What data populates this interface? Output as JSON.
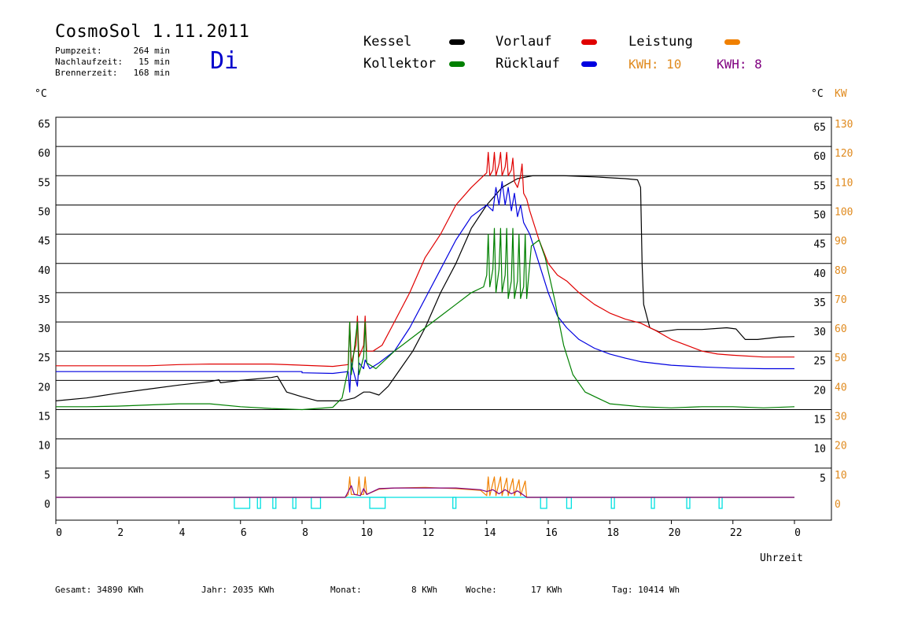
{
  "header": {
    "title": "CosmoSol 1.11.2011",
    "day": "Di",
    "info": [
      {
        "label": "Pumpzeit:",
        "value": "264 min"
      },
      {
        "label": "Nachlaufzeit:",
        "value": "15 min"
      },
      {
        "label": "Brennerzeit:",
        "value": "168 min"
      }
    ]
  },
  "legend": {
    "kessel": {
      "label": "Kessel",
      "color": "#000000"
    },
    "vorlauf": {
      "label": "Vorlauf",
      "color": "#e00000"
    },
    "leistung": {
      "label": "Leistung",
      "color": "#f08000"
    },
    "kollektor": {
      "label": "Kollektor",
      "color": "#008000"
    },
    "ruecklauf": {
      "label": "Rücklauf",
      "color": "#0000e0"
    },
    "kwh1": "KWH: 10",
    "kwh2": "KWH: 8",
    "kwh1_color": "#e08a1e",
    "kwh2_color": "#800080"
  },
  "axes": {
    "left_unit": "°C",
    "right_unit_c": "°C",
    "right_unit_kw": "KW",
    "xlabel": "Uhrzeit"
  },
  "footer": {
    "gesamt_label": "Gesamt:",
    "gesamt_value": "34890 KWh",
    "jahr_label": "Jahr:",
    "jahr_value": "2035 KWh",
    "monat_label": "Monat:",
    "monat_value": "8 KWh",
    "woche_label": "Woche:",
    "woche_value": "17 KWh",
    "tag_label": "Tag:",
    "tag_value": "10414 Wh"
  },
  "chart_data": {
    "type": "line",
    "xlabel": "Uhrzeit",
    "ylabel": "°C",
    "xlim": [
      0,
      24
    ],
    "ylim": [
      0,
      65
    ],
    "ylim_right_kw": [
      0,
      130
    ],
    "x_ticks": [
      "0",
      "2",
      "4",
      "6",
      "8",
      "10",
      "12",
      "14",
      "16",
      "18",
      "20",
      "22",
      "0"
    ],
    "y_ticks_left": [
      "0",
      "5",
      "10",
      "15",
      "20",
      "25",
      "30",
      "35",
      "40",
      "45",
      "50",
      "55",
      "60",
      "65"
    ],
    "y_ticks_right_c": [
      "5",
      "10",
      "15",
      "20",
      "25",
      "30",
      "35",
      "40",
      "45",
      "50",
      "55",
      "60",
      "65"
    ],
    "y_ticks_right_kw": [
      "0",
      "10",
      "20",
      "30",
      "40",
      "50",
      "60",
      "70",
      "80",
      "90",
      "100",
      "110",
      "120",
      "130"
    ],
    "grid": true,
    "series": [
      {
        "name": "Kessel",
        "color": "#000000",
        "points": [
          [
            0,
            16.5
          ],
          [
            1,
            17
          ],
          [
            2,
            17.8
          ],
          [
            3,
            18.5
          ],
          [
            4,
            19.2
          ],
          [
            5,
            19.8
          ],
          [
            5.3,
            20.1
          ],
          [
            5.35,
            19.6
          ],
          [
            6,
            20
          ],
          [
            7,
            20.5
          ],
          [
            7.2,
            20.7
          ],
          [
            7.5,
            18
          ],
          [
            8,
            17.2
          ],
          [
            8.5,
            16.5
          ],
          [
            9.3,
            16.5
          ],
          [
            9.7,
            17
          ],
          [
            10,
            18
          ],
          [
            10.2,
            18
          ],
          [
            10.5,
            17.5
          ],
          [
            10.8,
            19
          ],
          [
            11.2,
            22
          ],
          [
            11.6,
            25
          ],
          [
            12,
            29
          ],
          [
            12.5,
            35
          ],
          [
            13,
            40
          ],
          [
            13.5,
            46
          ],
          [
            14,
            50
          ],
          [
            14.5,
            53
          ],
          [
            15,
            54.5
          ],
          [
            15.5,
            55
          ],
          [
            16.5,
            55
          ],
          [
            17.5,
            54.8
          ],
          [
            18.5,
            54.5
          ],
          [
            18.9,
            54.3
          ],
          [
            19,
            53
          ],
          [
            19.05,
            40
          ],
          [
            19.1,
            33
          ],
          [
            19.3,
            29
          ],
          [
            19.6,
            28.3
          ],
          [
            20.2,
            28.7
          ],
          [
            21,
            28.7
          ],
          [
            21.8,
            29
          ],
          [
            22.1,
            28.8
          ],
          [
            22.4,
            27
          ],
          [
            22.8,
            27
          ],
          [
            23.5,
            27.4
          ],
          [
            24,
            27.5
          ]
        ]
      },
      {
        "name": "Vorlauf",
        "color": "#e00000",
        "points": [
          [
            0,
            22.5
          ],
          [
            3,
            22.5
          ],
          [
            4,
            22.7
          ],
          [
            5,
            22.8
          ],
          [
            6,
            22.8
          ],
          [
            7,
            22.8
          ],
          [
            8,
            22.6
          ],
          [
            9,
            22.4
          ],
          [
            9.5,
            22.7
          ],
          [
            9.55,
            30
          ],
          [
            9.6,
            23
          ],
          [
            9.75,
            26
          ],
          [
            9.8,
            31
          ],
          [
            9.85,
            24
          ],
          [
            10,
            26
          ],
          [
            10.05,
            31
          ],
          [
            10.1,
            25
          ],
          [
            10.3,
            25
          ],
          [
            10.6,
            26
          ],
          [
            11,
            30
          ],
          [
            11.5,
            35
          ],
          [
            12,
            41
          ],
          [
            12.5,
            45
          ],
          [
            13,
            50
          ],
          [
            13.5,
            53
          ],
          [
            13.9,
            55
          ],
          [
            14,
            55.5
          ],
          [
            14.05,
            59
          ],
          [
            14.1,
            55
          ],
          [
            14.2,
            56
          ],
          [
            14.25,
            59
          ],
          [
            14.3,
            55
          ],
          [
            14.4,
            57
          ],
          [
            14.45,
            59
          ],
          [
            14.5,
            55
          ],
          [
            14.6,
            56.5
          ],
          [
            14.65,
            59
          ],
          [
            14.7,
            55
          ],
          [
            14.8,
            56
          ],
          [
            14.85,
            58
          ],
          [
            14.9,
            54
          ],
          [
            15,
            53
          ],
          [
            15.1,
            55
          ],
          [
            15.15,
            57
          ],
          [
            15.2,
            52
          ],
          [
            15.3,
            51
          ],
          [
            15.4,
            49
          ],
          [
            15.7,
            44
          ],
          [
            16,
            40
          ],
          [
            16.3,
            38
          ],
          [
            16.6,
            37
          ],
          [
            17,
            35
          ],
          [
            17.5,
            33
          ],
          [
            18,
            31.5
          ],
          [
            18.5,
            30.5
          ],
          [
            19,
            29.8
          ],
          [
            19.5,
            28.5
          ],
          [
            20,
            27
          ],
          [
            20.5,
            26
          ],
          [
            21,
            25
          ],
          [
            21.5,
            24.5
          ],
          [
            22,
            24.3
          ],
          [
            23,
            24
          ],
          [
            24,
            24
          ]
        ]
      },
      {
        "name": "Rücklauf",
        "color": "#0000e0",
        "points": [
          [
            0,
            21.5
          ],
          [
            3,
            21.5
          ],
          [
            6,
            21.5
          ],
          [
            7,
            21.5
          ],
          [
            8,
            21.5
          ],
          [
            8,
            21.3
          ],
          [
            9,
            21.2
          ],
          [
            9.5,
            21.5
          ],
          [
            9.55,
            18
          ],
          [
            9.6,
            23
          ],
          [
            9.8,
            19
          ],
          [
            9.85,
            23
          ],
          [
            10,
            22
          ],
          [
            10.05,
            23.5
          ],
          [
            10.2,
            22
          ],
          [
            10.5,
            23
          ],
          [
            11,
            25
          ],
          [
            11.5,
            29
          ],
          [
            12,
            34
          ],
          [
            12.5,
            39
          ],
          [
            13,
            44
          ],
          [
            13.5,
            48
          ],
          [
            14,
            50
          ],
          [
            14.2,
            49
          ],
          [
            14.3,
            53
          ],
          [
            14.4,
            50
          ],
          [
            14.5,
            54
          ],
          [
            14.6,
            50
          ],
          [
            14.7,
            53
          ],
          [
            14.8,
            49
          ],
          [
            14.9,
            52
          ],
          [
            15,
            48
          ],
          [
            15.1,
            50
          ],
          [
            15.2,
            47
          ],
          [
            15.4,
            45
          ],
          [
            15.7,
            40
          ],
          [
            16,
            35
          ],
          [
            16.3,
            31
          ],
          [
            16.6,
            29
          ],
          [
            17,
            27
          ],
          [
            17.5,
            25.5
          ],
          [
            18,
            24.5
          ],
          [
            18.5,
            23.8
          ],
          [
            19,
            23.2
          ],
          [
            20,
            22.6
          ],
          [
            21,
            22.3
          ],
          [
            22,
            22.1
          ],
          [
            23,
            22
          ],
          [
            24,
            22
          ]
        ]
      },
      {
        "name": "Kollektor",
        "color": "#008000",
        "points": [
          [
            0,
            15.5
          ],
          [
            1,
            15.5
          ],
          [
            2,
            15.6
          ],
          [
            3,
            15.8
          ],
          [
            4,
            16
          ],
          [
            5,
            16
          ],
          [
            6,
            15.5
          ],
          [
            7,
            15.2
          ],
          [
            8,
            15
          ],
          [
            9,
            15.4
          ],
          [
            9.3,
            17
          ],
          [
            9.5,
            22
          ],
          [
            9.55,
            30
          ],
          [
            9.6,
            21
          ],
          [
            9.8,
            30
          ],
          [
            9.85,
            21
          ],
          [
            10,
            24
          ],
          [
            10.05,
            30
          ],
          [
            10.1,
            23
          ],
          [
            10.4,
            22
          ],
          [
            10.8,
            24
          ],
          [
            11,
            25
          ],
          [
            11.5,
            27
          ],
          [
            12,
            29
          ],
          [
            12.5,
            31
          ],
          [
            13,
            33
          ],
          [
            13.5,
            35
          ],
          [
            13.9,
            36
          ],
          [
            14,
            38
          ],
          [
            14.05,
            45
          ],
          [
            14.1,
            36
          ],
          [
            14.2,
            39
          ],
          [
            14.25,
            46
          ],
          [
            14.3,
            35
          ],
          [
            14.4,
            39
          ],
          [
            14.45,
            46
          ],
          [
            14.5,
            35
          ],
          [
            14.6,
            38
          ],
          [
            14.65,
            46
          ],
          [
            14.7,
            34
          ],
          [
            14.8,
            37
          ],
          [
            14.85,
            46
          ],
          [
            14.9,
            34
          ],
          [
            15,
            37
          ],
          [
            15.05,
            45
          ],
          [
            15.1,
            34
          ],
          [
            15.2,
            36
          ],
          [
            15.25,
            45
          ],
          [
            15.3,
            34
          ],
          [
            15.45,
            43
          ],
          [
            15.7,
            44
          ],
          [
            15.9,
            41
          ],
          [
            16.2,
            34
          ],
          [
            16.5,
            26
          ],
          [
            16.8,
            21
          ],
          [
            17.2,
            18
          ],
          [
            17.6,
            17
          ],
          [
            18,
            16
          ],
          [
            19,
            15.5
          ],
          [
            20,
            15.3
          ],
          [
            21,
            15.5
          ],
          [
            22,
            15.5
          ],
          [
            23,
            15.3
          ],
          [
            24,
            15.5
          ]
        ]
      },
      {
        "name": "Leistung",
        "color": "#f08000",
        "points": [
          [
            0,
            0
          ],
          [
            9.4,
            0
          ],
          [
            9.5,
            0.5
          ],
          [
            9.55,
            3.5
          ],
          [
            9.6,
            0.5
          ],
          [
            9.8,
            0.5
          ],
          [
            9.85,
            3.5
          ],
          [
            9.9,
            0.5
          ],
          [
            10,
            0.5
          ],
          [
            10.05,
            3.5
          ],
          [
            10.1,
            0.5
          ],
          [
            10.5,
            1.4
          ],
          [
            11,
            1.6
          ],
          [
            12,
            1.7
          ],
          [
            13,
            1.5
          ],
          [
            13.8,
            1.2
          ],
          [
            14,
            0.3
          ],
          [
            14.05,
            3.5
          ],
          [
            14.1,
            0.3
          ],
          [
            14.25,
            3.5
          ],
          [
            14.3,
            0.3
          ],
          [
            14.45,
            3.5
          ],
          [
            14.5,
            0.3
          ],
          [
            14.65,
            3.3
          ],
          [
            14.7,
            0.3
          ],
          [
            14.85,
            3.2
          ],
          [
            14.9,
            0.3
          ],
          [
            15.05,
            3
          ],
          [
            15.1,
            0.3
          ],
          [
            15.25,
            2.8
          ],
          [
            15.3,
            0
          ],
          [
            24,
            0
          ]
        ]
      },
      {
        "name": "KWH",
        "color": "#800080",
        "points": [
          [
            0,
            0
          ],
          [
            9.4,
            0
          ],
          [
            9.5,
            1
          ],
          [
            9.6,
            2
          ],
          [
            9.7,
            0.5
          ],
          [
            9.9,
            0.3
          ],
          [
            10,
            1.5
          ],
          [
            10.1,
            0.5
          ],
          [
            10.5,
            1.5
          ],
          [
            11,
            1.6
          ],
          [
            12,
            1.6
          ],
          [
            13,
            1.6
          ],
          [
            13.8,
            1.3
          ],
          [
            14,
            1
          ],
          [
            14.2,
            1.3
          ],
          [
            14.4,
            0.6
          ],
          [
            14.6,
            1.3
          ],
          [
            14.8,
            0.6
          ],
          [
            15,
            1.1
          ],
          [
            15.3,
            0
          ],
          [
            24,
            0
          ]
        ]
      }
    ],
    "pump_segments": [
      [
        5.8,
        6.3
      ],
      [
        6.55,
        6.65
      ],
      [
        7.05,
        7.15
      ],
      [
        7.7,
        7.8
      ],
      [
        8.3,
        8.6
      ],
      [
        10.2,
        10.7
      ],
      [
        12.9,
        13
      ],
      [
        15.75,
        15.95
      ],
      [
        16.6,
        16.75
      ],
      [
        18.05,
        18.15
      ],
      [
        19.35,
        19.45
      ],
      [
        20.5,
        20.6
      ],
      [
        21.55,
        21.65
      ]
    ]
  }
}
